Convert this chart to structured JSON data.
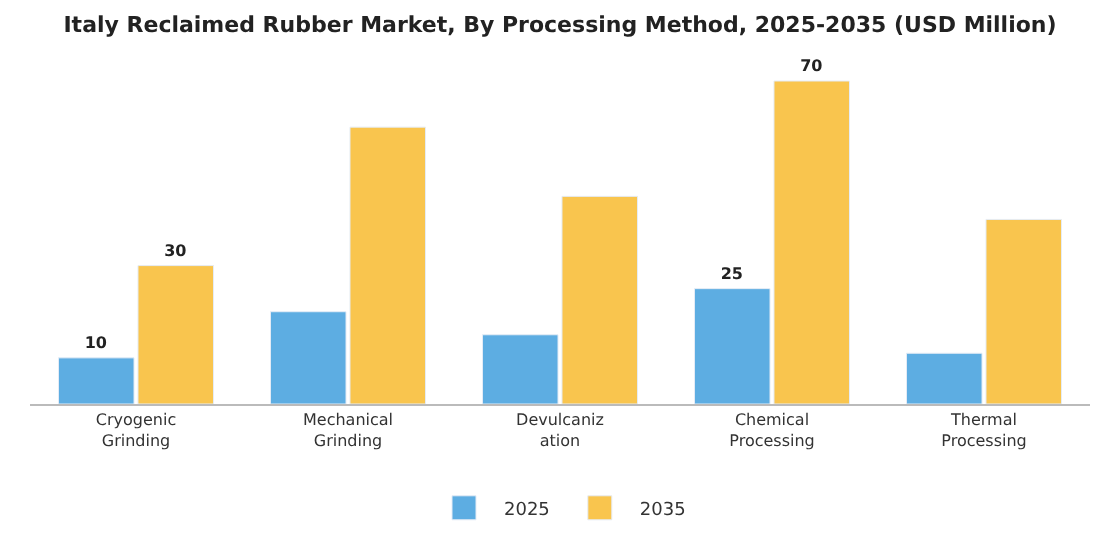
{
  "chart_data": {
    "type": "bar",
    "title": "Italy Reclaimed Rubber Market, By Processing Method, 2025-2035 (USD Million)",
    "categories": [
      "Cryogenic\nGrinding",
      "Mechanical\nGrinding",
      "Devulcaniz\nation",
      "Chemical\nProcessing",
      "Thermal\nProcessing"
    ],
    "series": [
      {
        "name": "2025",
        "color": "#5dade2",
        "values": [
          10,
          20,
          15,
          25,
          11
        ],
        "value_labels": [
          "10",
          null,
          null,
          "25",
          null
        ]
      },
      {
        "name": "2035",
        "color": "#f9c54e",
        "values": [
          30,
          60,
          45,
          70,
          40
        ],
        "value_labels": [
          "30",
          null,
          null,
          "70",
          null
        ]
      }
    ],
    "legend": "bottom"
  }
}
